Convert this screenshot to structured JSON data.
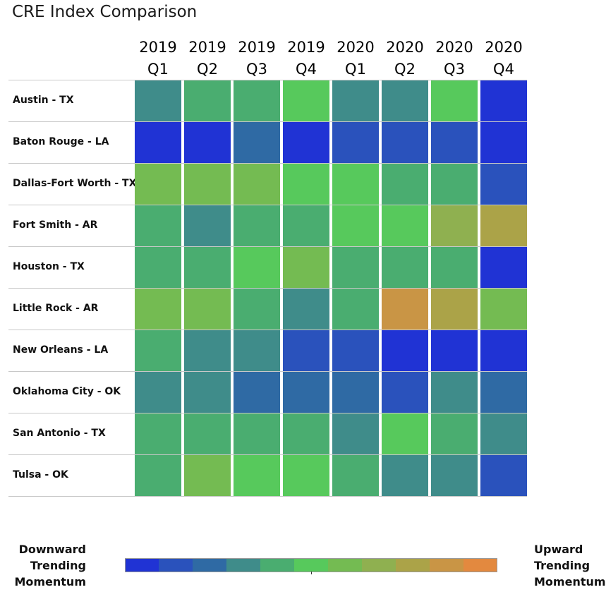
{
  "chart_data": {
    "type": "heatmap",
    "title": "CRE Index Comparison",
    "columns": [
      {
        "year": "2019",
        "quarter": "Q1"
      },
      {
        "year": "2019",
        "quarter": "Q2"
      },
      {
        "year": "2019",
        "quarter": "Q3"
      },
      {
        "year": "2019",
        "quarter": "Q4"
      },
      {
        "year": "2020",
        "quarter": "Q1"
      },
      {
        "year": "2020",
        "quarter": "Q2"
      },
      {
        "year": "2020",
        "quarter": "Q3"
      },
      {
        "year": "2020",
        "quarter": "Q4"
      }
    ],
    "rows": [
      "Austin - TX",
      "Baton Rouge - LA",
      "Dallas-Fort Worth - TX",
      "Fort Smith - AR",
      "Houston - TX",
      "Little Rock - AR",
      "New Orleans - LA",
      "Oklahoma City - OK",
      "San Antonio - TX",
      "Tulsa - OK"
    ],
    "values": [
      [
        4,
        5,
        5,
        6,
        4,
        4,
        6,
        1
      ],
      [
        1,
        1,
        3,
        1,
        2,
        2,
        2,
        1
      ],
      [
        7,
        7,
        7,
        6,
        6,
        5,
        5,
        2
      ],
      [
        5,
        4,
        5,
        5,
        6,
        6,
        8,
        9
      ],
      [
        5,
        5,
        6,
        7,
        5,
        5,
        5,
        1
      ],
      [
        7,
        7,
        5,
        4,
        5,
        10,
        9,
        7
      ],
      [
        5,
        4,
        4,
        2,
        2,
        1,
        1,
        1
      ],
      [
        4,
        4,
        3,
        3,
        3,
        2,
        4,
        3
      ],
      [
        5,
        5,
        5,
        5,
        4,
        6,
        5,
        4
      ],
      [
        5,
        7,
        6,
        6,
        5,
        4,
        4,
        2
      ]
    ],
    "color_scale": [
      "#2033d4",
      "#2a52bc",
      "#2f6aa4",
      "#3f8c8a",
      "#4aad70",
      "#57c95c",
      "#74bb52",
      "#8fb050",
      "#aba348",
      "#c99545",
      "#e3893f"
    ],
    "legend": {
      "left_label": [
        "Downward",
        "Trending",
        "Momentum"
      ],
      "right_label": [
        "Upward",
        "Trending",
        "Momentum"
      ],
      "position": "bottom"
    }
  }
}
